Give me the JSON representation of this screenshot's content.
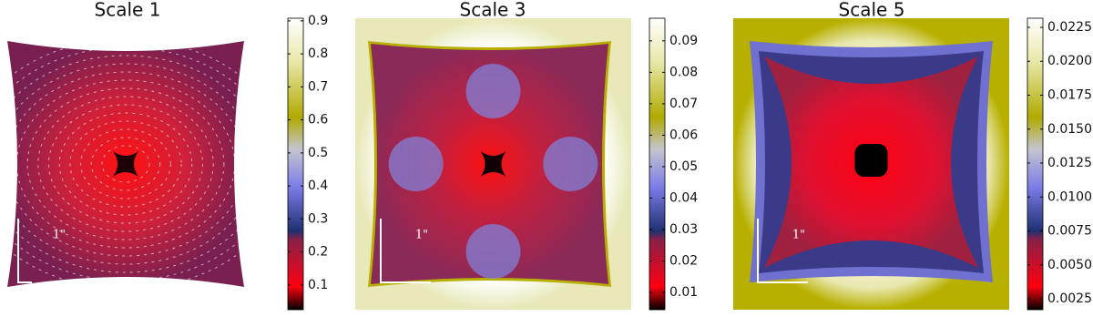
{
  "panels": [
    {
      "title": "Scale 1",
      "scale_label": "1\"",
      "colorbar": {
        "lim": [
          0.025,
          0.908
        ],
        "ticks": [
          0.1,
          0.2,
          0.3,
          0.4,
          0.5,
          0.6,
          0.7,
          0.8,
          0.9
        ]
      }
    },
    {
      "title": "Scale 3",
      "scale_label": "1\"",
      "colorbar": {
        "lim": [
          0.0045,
          0.0972
        ],
        "ticks": [
          0.01,
          0.02,
          0.03,
          0.04,
          0.05,
          0.06,
          0.07,
          0.08,
          0.09
        ]
      }
    },
    {
      "title": "Scale 5",
      "scale_label": "1\"",
      "colorbar": {
        "lim": [
          0.0017,
          0.02317
        ],
        "ticks": [
          0.0025,
          {
            "value": 0.005,
            "label": "0.0050"
          },
          0.0075,
          {
            "value": 0.01,
            "label": "0.0100"
          },
          0.0125,
          {
            "value": 0.015,
            "label": "0.0150"
          },
          0.0175,
          {
            "value": 0.02,
            "label": "0.0200"
          },
          0.0225
        ]
      }
    }
  ]
}
